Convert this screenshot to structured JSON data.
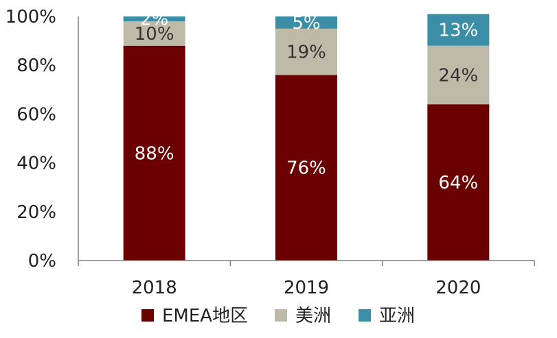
{
  "chart_data": {
    "type": "bar",
    "stacked": true,
    "percent": true,
    "title": "",
    "xlabel": "",
    "ylabel": "",
    "ylim": [
      0,
      100
    ],
    "y_ticks": [
      {
        "value": 0,
        "label": "0%"
      },
      {
        "value": 20,
        "label": "20%"
      },
      {
        "value": 40,
        "label": "40%"
      },
      {
        "value": 60,
        "label": "60%"
      },
      {
        "value": 80,
        "label": "80%"
      },
      {
        "value": 100,
        "label": "100%"
      }
    ],
    "categories": [
      "2018",
      "2019",
      "2020"
    ],
    "series": [
      {
        "name": "EMEA地区",
        "color": "#6b0000",
        "label_color": "#ffffff",
        "values": [
          88,
          76,
          64
        ],
        "labels": [
          "88%",
          "76%",
          "64%"
        ]
      },
      {
        "name": "美洲",
        "color": "#bdbaa8",
        "label_color": "#333333",
        "values": [
          10,
          19,
          24
        ],
        "labels": [
          "10%",
          "19%",
          "24%"
        ]
      },
      {
        "name": "亚洲",
        "color": "#3b8ea5",
        "label_color": "#ffffff",
        "values": [
          2,
          5,
          13
        ],
        "labels": [
          "2%",
          "5%",
          "13%"
        ]
      }
    ],
    "grid": false,
    "legend_position": "bottom"
  },
  "colors": {
    "axis": "#7f7f7f",
    "text": "#222222",
    "background": "#ffffff"
  }
}
